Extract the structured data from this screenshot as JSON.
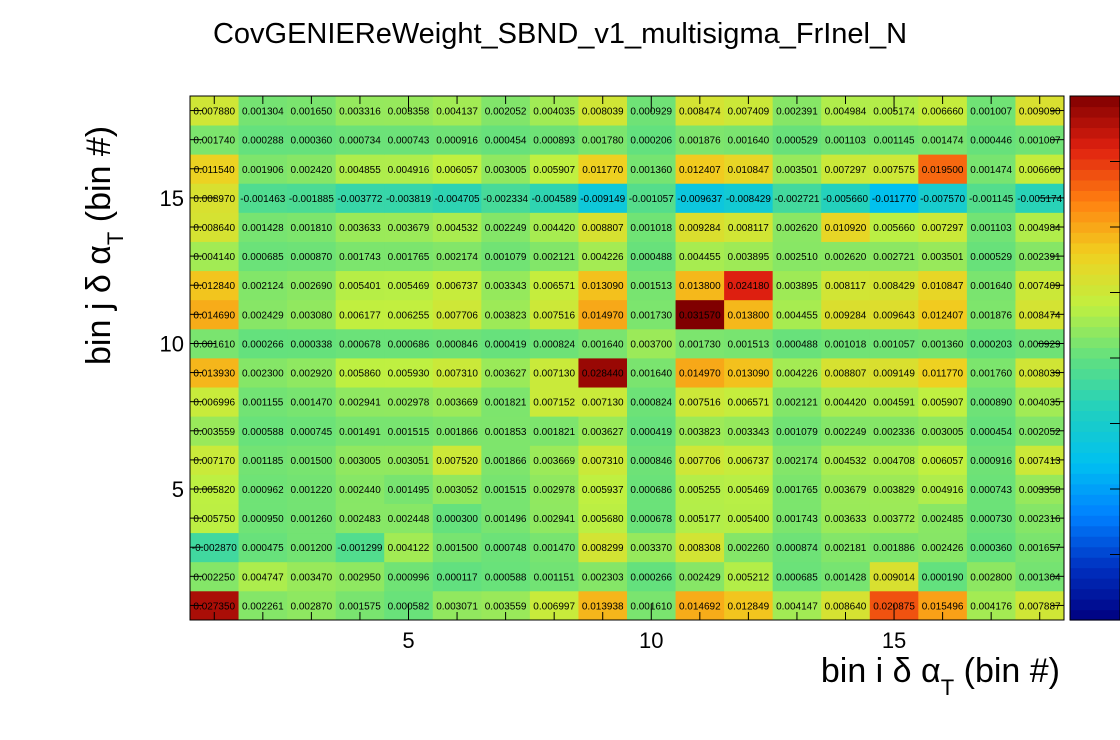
{
  "chart_data": {
    "type": "heatmap",
    "title": "CovGENIEReWeight_SBND_v1_multisigma_FrInel_N",
    "xlabel": "bin i δ αT (bin #)",
    "ylabel": "bin j δ αT (bin #)",
    "xlabel_parts": {
      "pre": "bin i δ α",
      "sub": "T",
      "post": " (bin #)"
    },
    "ylabel_parts": {
      "pre": "bin j δ α",
      "sub": "T",
      "post": " (bin #)"
    },
    "x_ticks": [
      "5",
      "10",
      "15"
    ],
    "y_ticks": [
      "5",
      "10",
      "15"
    ],
    "xlim": [
      0.5,
      18.5
    ],
    "ylim": [
      0.5,
      18.5
    ],
    "nx": 18,
    "ny": 18,
    "zlim": [
      -0.03,
      0.03
    ],
    "colormap": [
      "#000080",
      "#0030c0",
      "#0080ff",
      "#00c0f0",
      "#20d0c0",
      "#60e080",
      "#c0f040",
      "#f0d020",
      "#ff8010",
      "#e02010",
      "#800000"
    ],
    "labels": [
      [
        "0.027350",
        "0.002261",
        "0.002870",
        "0.001575",
        "0.000582",
        "0.003071",
        "0.003559",
        "0.006997",
        "0.013938",
        "0.001610",
        "0.014692",
        "0.012849",
        "0.004147",
        "0.008640",
        "0.020875",
        "0.015496",
        "0.004176",
        "0.007887"
      ],
      [
        "0.002250",
        "0.004747",
        "0.003470",
        "0.002950",
        "0.000996",
        "0.000117",
        "0.000588",
        "0.001151",
        "0.002303",
        "0.000266",
        "0.002429",
        "0.005212",
        "0.000685",
        "0.001428",
        "0.009014",
        "0.000190",
        "0.002800",
        "0.001304"
      ],
      [
        "-0.002870",
        "0.000475",
        "0.001200",
        "-0.001299",
        "0.004122",
        "0.001500",
        "0.000748",
        "0.001470",
        "0.008299",
        "0.003370",
        "0.008308",
        "0.002260",
        "0.000874",
        "0.002181",
        "0.001886",
        "0.002426",
        "0.000360",
        "0.001657"
      ],
      [
        "0.005750",
        "0.000950",
        "0.001260",
        "0.002483",
        "0.002448",
        "0.000300",
        "0.001496",
        "0.002941",
        "0.005680",
        "0.000678",
        "0.005177",
        "0.005400",
        "0.001743",
        "0.003633",
        "0.003772",
        "0.002485",
        "0.000730",
        "0.002316"
      ],
      [
        "0.005820",
        "0.000962",
        "0.001220",
        "0.002440",
        "0.001495",
        "0.003052",
        "0.001515",
        "0.002978",
        "0.005937",
        "0.000686",
        "0.005255",
        "0.005469",
        "0.001765",
        "0.003679",
        "0.003829",
        "0.004916",
        "0.000743",
        "0.003358"
      ],
      [
        "0.007170",
        "0.001185",
        "0.001500",
        "0.003005",
        "0.003051",
        "0.007520",
        "0.001866",
        "0.003669",
        "0.007310",
        "0.000846",
        "0.007706",
        "0.006737",
        "0.002174",
        "0.004532",
        "0.004708",
        "0.006057",
        "0.000916",
        "0.007413"
      ],
      [
        "0.003559",
        "0.000588",
        "0.000745",
        "0.001491",
        "0.001515",
        "0.001866",
        "0.001853",
        "0.001821",
        "0.003627",
        "0.000419",
        "0.003823",
        "0.003343",
        "0.001079",
        "0.002249",
        "0.002336",
        "0.003005",
        "0.000454",
        "0.002052"
      ],
      [
        "0.006996",
        "0.001155",
        "0.001470",
        "0.002941",
        "0.002978",
        "0.003669",
        "0.001821",
        "0.007152",
        "0.007130",
        "0.000824",
        "0.007516",
        "0.006571",
        "0.002121",
        "0.004420",
        "0.004591",
        "0.005907",
        "0.000890",
        "0.004035"
      ],
      [
        "0.013930",
        "0.002300",
        "0.002920",
        "0.005860",
        "0.005930",
        "0.007310",
        "0.003627",
        "0.007130",
        "0.028440",
        "0.001640",
        "0.014970",
        "0.013090",
        "0.004226",
        "0.008807",
        "0.009149",
        "0.011770",
        "0.001760",
        "0.008039"
      ],
      [
        "0.001610",
        "0.000266",
        "0.000338",
        "0.000678",
        "0.000686",
        "0.000846",
        "0.000419",
        "0.000824",
        "0.001640",
        "0.003700",
        "0.001730",
        "0.001513",
        "0.000488",
        "0.001018",
        "0.001057",
        "0.001360",
        "0.000203",
        "0.000929"
      ],
      [
        "0.014690",
        "0.002429",
        "0.003080",
        "0.006177",
        "0.006255",
        "0.007706",
        "0.003823",
        "0.007516",
        "0.014970",
        "0.001730",
        "0.031570",
        "0.013800",
        "0.004455",
        "0.009284",
        "0.009643",
        "0.012407",
        "0.001876",
        "0.008474"
      ],
      [
        "0.012840",
        "0.002124",
        "0.002690",
        "0.005401",
        "0.005469",
        "0.006737",
        "0.003343",
        "0.006571",
        "0.013090",
        "0.001513",
        "0.013800",
        "0.024180",
        "0.003895",
        "0.008117",
        "0.008429",
        "0.010847",
        "0.001640",
        "0.007409"
      ],
      [
        "0.004140",
        "0.000685",
        "0.000870",
        "0.001743",
        "0.001765",
        "0.002174",
        "0.001079",
        "0.002121",
        "0.004226",
        "0.000488",
        "0.004455",
        "0.003895",
        "0.002510",
        "0.002620",
        "0.002721",
        "0.003501",
        "0.000529",
        "0.002391"
      ],
      [
        "0.008640",
        "0.001428",
        "0.001810",
        "0.003633",
        "0.003679",
        "0.004532",
        "0.002249",
        "0.004420",
        "0.008807",
        "0.001018",
        "0.009284",
        "0.008117",
        "0.002620",
        "0.010920",
        "0.005660",
        "0.007297",
        "0.001103",
        "0.004984"
      ],
      [
        "0.008970",
        "-0.001463",
        "-0.001885",
        "-0.003772",
        "-0.003819",
        "-0.004705",
        "-0.002334",
        "-0.004589",
        "-0.009149",
        "-0.001057",
        "-0.009637",
        "-0.008429",
        "-0.002721",
        "-0.005660",
        "-0.011770",
        "-0.007570",
        "-0.001145",
        "-0.005174"
      ],
      [
        "0.011540",
        "0.001906",
        "0.002420",
        "0.004855",
        "0.004916",
        "0.006057",
        "0.003005",
        "0.005907",
        "0.011770",
        "0.001360",
        "0.012407",
        "0.010847",
        "0.003501",
        "0.007297",
        "0.007575",
        "0.019500",
        "0.001474",
        "0.006660"
      ],
      [
        "0.001740",
        "0.000288",
        "0.000360",
        "0.000734",
        "0.000743",
        "0.000916",
        "0.000454",
        "0.000893",
        "0.001780",
        "0.000206",
        "0.001876",
        "0.001640",
        "0.000529",
        "0.001103",
        "0.001145",
        "0.001474",
        "0.000446",
        "0.001007"
      ],
      [
        "0.007880",
        "0.001304",
        "0.001650",
        "0.003316",
        "0.003358",
        "0.004137",
        "0.002052",
        "0.004035",
        "0.008039",
        "0.000929",
        "0.008474",
        "0.007409",
        "0.002391",
        "0.004984",
        "0.005174",
        "0.006660",
        "0.001007",
        "0.009090"
      ]
    ]
  }
}
